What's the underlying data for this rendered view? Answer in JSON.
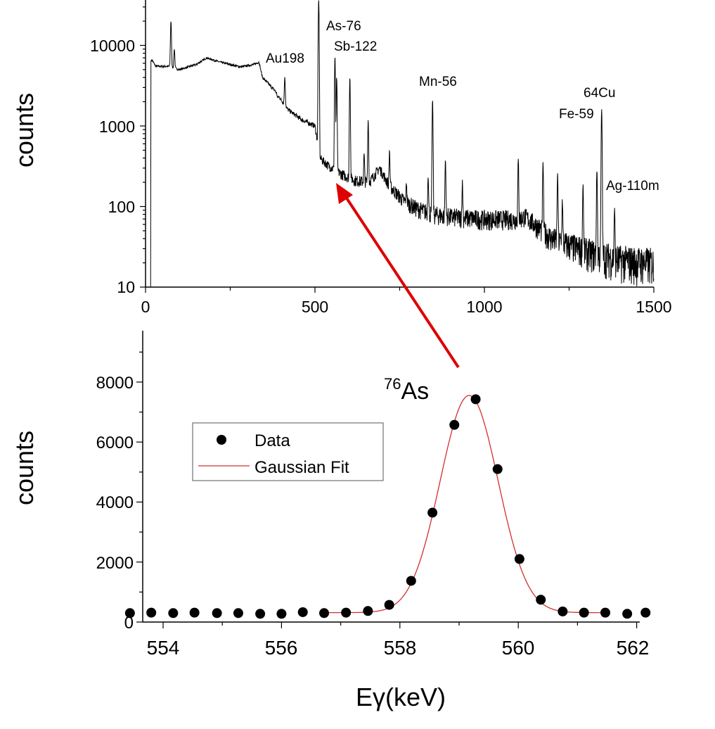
{
  "chart_data": [
    {
      "type": "line",
      "title": "",
      "xlabel": "",
      "ylabel": "counts",
      "xlim": [
        0,
        1500
      ],
      "ylim": [
        10,
        37000
      ],
      "yscale": "log",
      "xticks": [
        "0",
        "500",
        "1000",
        "1500"
      ],
      "yticks": [
        "10",
        "100",
        "1000",
        "10000"
      ],
      "grid": false,
      "line_color": "#000000",
      "continuum": {
        "x": [
          20,
          30,
          70,
          100,
          150,
          180,
          220,
          280,
          320,
          335,
          345,
          380,
          420,
          460,
          500,
          515,
          540,
          580,
          620,
          660,
          680,
          690,
          720,
          760,
          800,
          850,
          900,
          1000,
          1100,
          1120,
          1150,
          1200,
          1300,
          1400,
          1500
        ],
        "y": [
          6500,
          5500,
          5500,
          5000,
          5800,
          7000,
          6200,
          5400,
          5800,
          6200,
          4000,
          2800,
          1600,
          1200,
          1000,
          400,
          320,
          250,
          210,
          200,
          260,
          300,
          180,
          120,
          95,
          80,
          75,
          70,
          70,
          75,
          60,
          40,
          28,
          22,
          20
        ]
      },
      "peaks": {
        "x": [
          75,
          85,
          390,
          411,
          511,
          559,
          564,
          603,
          645,
          657,
          720,
          770,
          834,
          847,
          885,
          935,
          1100,
          1173,
          1216,
          1230,
          1291,
          1332,
          1346,
          1384
        ],
        "y": [
          20000,
          9000,
          2200,
          4000,
          37000,
          7200,
          4000,
          4000,
          450,
          1200,
          500,
          200,
          250,
          2100,
          380,
          200,
          380,
          350,
          250,
          120,
          190,
          280,
          1600,
          90
        ]
      },
      "annotations": [
        "As-76",
        "Sb-122",
        "Au198",
        "Mn-56",
        "64Cu",
        "Fe-59",
        "Ag-110m"
      ],
      "arrow_color": "#dd0000"
    },
    {
      "type": "scatter",
      "title": "",
      "xlabel": "Eγ(keV)",
      "ylabel": "counts",
      "xlim": [
        553.35,
        562.2
      ],
      "ylim": [
        0,
        9700
      ],
      "xticks": [
        "554",
        "556",
        "558",
        "560",
        "562"
      ],
      "yticks": [
        "0",
        "2000",
        "4000",
        "6000",
        "8000"
      ],
      "grid": false,
      "annotation": {
        "superscript": "76",
        "text": "As"
      },
      "legend": {
        "placement": "upper-left",
        "entries": [
          "Data",
          "Gaussian Fit"
        ]
      },
      "series": [
        {
          "name": "Data",
          "type": "scatter",
          "color": "#000000",
          "x": [
            553.44,
            553.8,
            554.17,
            554.53,
            554.91,
            555.27,
            555.64,
            556.0,
            556.36,
            556.72,
            557.09,
            557.46,
            557.82,
            558.19,
            558.55,
            558.92,
            559.28,
            559.65,
            560.02,
            560.38,
            560.75,
            561.11,
            561.47,
            561.84,
            562.15
          ],
          "y": [
            298,
            314,
            298,
            314,
            298,
            298,
            275,
            275,
            329,
            298,
            314,
            369,
            573,
            1373,
            3647,
            6573,
            7427,
            5098,
            2102,
            745,
            353,
            314,
            314,
            275,
            314
          ]
        },
        {
          "name": "Gaussian Fit",
          "type": "line",
          "color": "#d03030",
          "x_range": [
            556.75,
            561.5
          ],
          "baseline": 314,
          "amplitude": 7240,
          "center": 559.17,
          "sigma": 0.49
        }
      ]
    }
  ]
}
